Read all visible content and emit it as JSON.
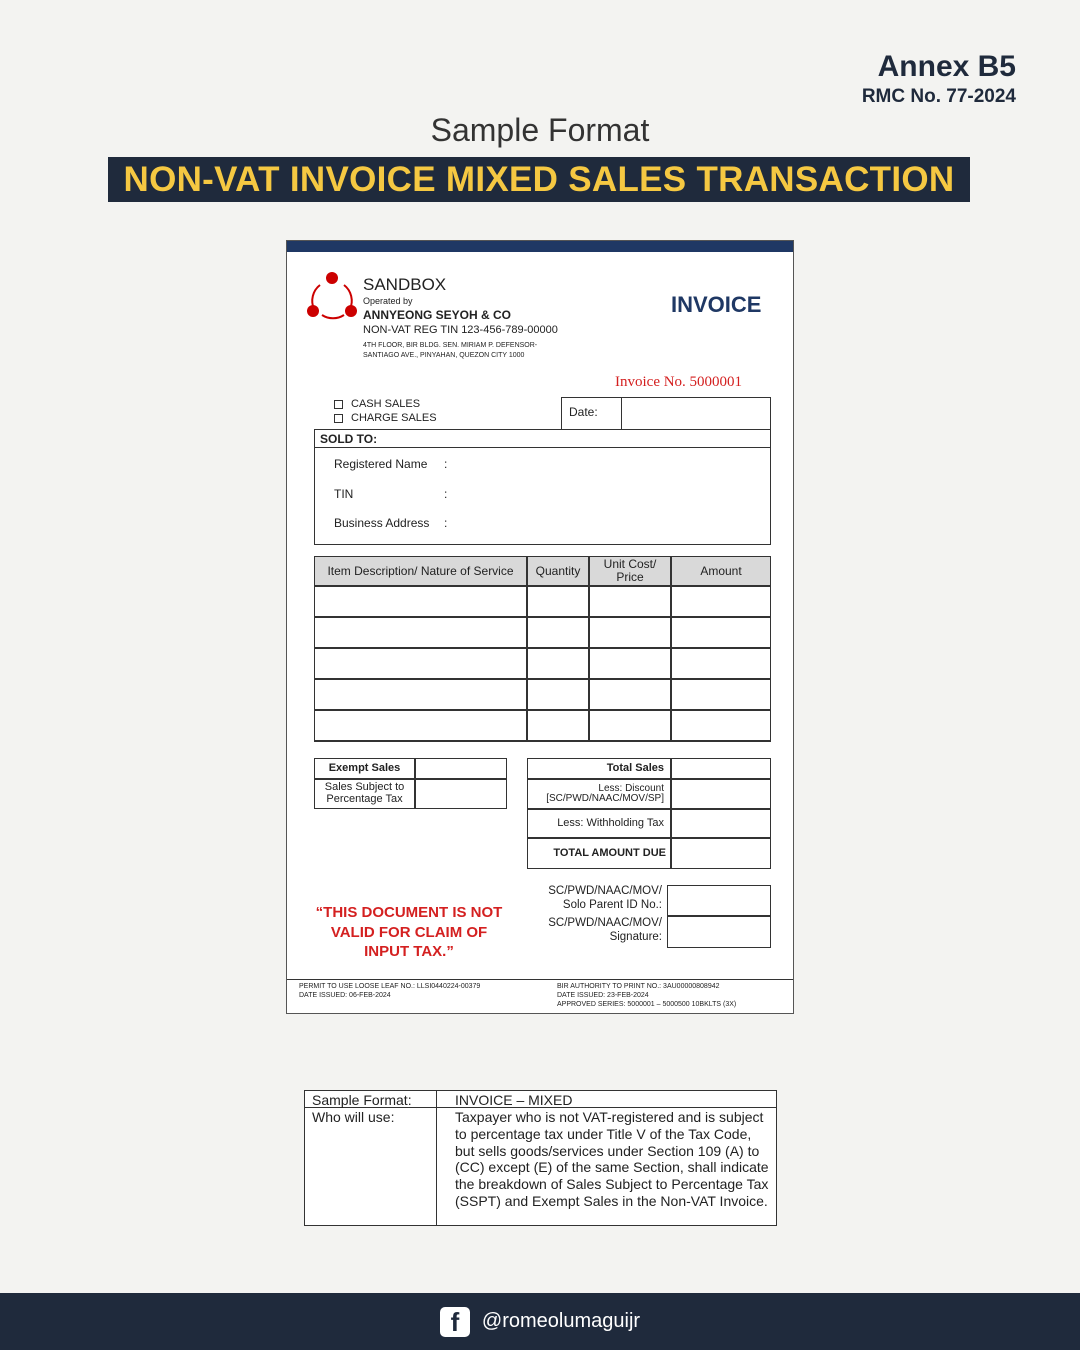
{
  "header": {
    "annex": "Annex B5",
    "rmc": "RMC No. 77-2024",
    "subtitle": "Sample Format",
    "title": "NON-VAT INVOICE MIXED SALES TRANSACTION"
  },
  "invoice": {
    "brand": "SANDBOX",
    "operated_by": "Operated by",
    "company": "ANNYEONG SEYOH & CO",
    "tin": "NON-VAT REG TIN 123-456-789-00000",
    "address1": "4TH FLOOR, BIR BLDG. SEN. MIRIAM P. DEFENSOR-",
    "address2": "SANTIAGO AVE., PINYAHAN, QUEZON CITY 1000",
    "doc_title": "INVOICE",
    "invoice_no": "Invoice No. 5000001",
    "cash_sales": "CASH SALES",
    "charge_sales": "CHARGE SALES",
    "date_label": "Date:",
    "sold_to": "SOLD TO:",
    "registered_name": "Registered Name",
    "tin_label": "TIN",
    "business_address": "Business Address",
    "colon": ":",
    "columns": [
      "Item Description/ Nature of Service",
      "Quantity",
      "Unit Cost/ Price",
      "Amount"
    ],
    "exempt_sales": "Exempt Sales",
    "sales_subject": "Sales Subject to Percentage Tax",
    "total_sales": "Total Sales",
    "less_discount": "Less: Discount [SC/PWD/NAAC/MOV/SP]",
    "less_withholding": "Less: Withholding Tax",
    "total_amount_due": "TOTAL AMOUNT DUE",
    "id_no": "SC/PWD/NAAC/MOV/ Solo Parent ID No.:",
    "signature": "SC/PWD/NAAC/MOV/ Signature:",
    "note": "“THIS DOCUMENT IS NOT VALID FOR CLAIM OF INPUT TAX.”",
    "permit": "PERMIT TO USE LOOSE LEAF NO.: LLSI0440224-00379",
    "permit_date": "DATE ISSUED: 06-FEB-2024",
    "atp": "BIR AUTHORITY TO PRINT NO.: 3AU00000808942",
    "atp_date": "DATE ISSUED: 23-FEB-2024",
    "series": "APPROVED SERIES: 5000001 – 5000500 10BKLTS (3X)"
  },
  "info_table": {
    "sample_label": "Sample Format:",
    "sample_value": "INVOICE – MIXED",
    "who_label": "Who will use:",
    "who_value": "Taxpayer who is not VAT-registered and is subject to percentage tax under Title V of the Tax Code, but sells goods/services under Section 109 (A) to (CC) except (E) of the same Section, shall indicate the breakdown of Sales Subject to Percentage Tax (SSPT) and Exempt Sales in the Non-VAT Invoice."
  },
  "footer": {
    "handle": "@romeolumaguijr"
  },
  "colors": {
    "navy": "#1f2a3c",
    "yellow": "#f5c842",
    "red": "#d42020"
  }
}
